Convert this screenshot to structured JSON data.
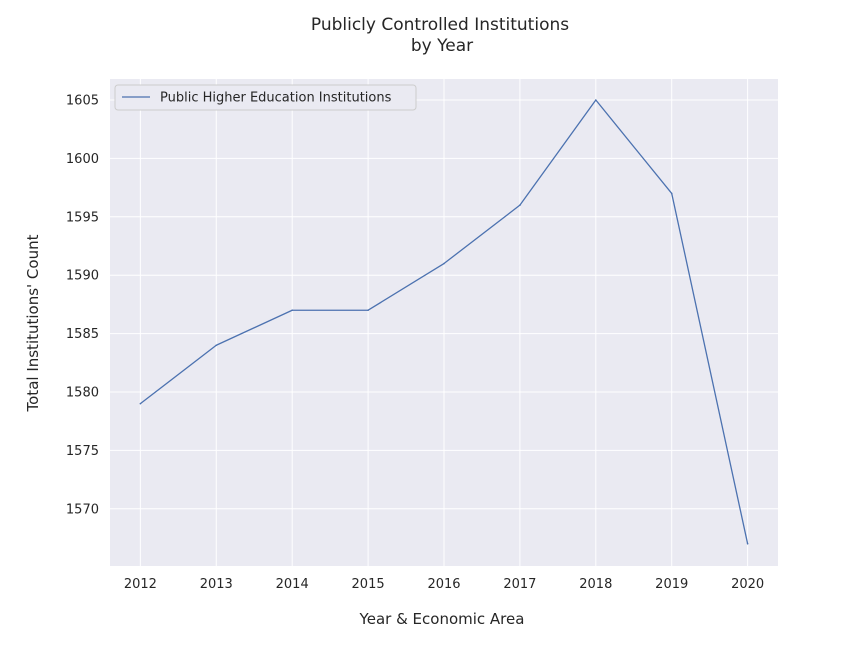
{
  "chart_data": {
    "type": "line",
    "title": [
      "Publicly Controlled Institutions",
      "by Year"
    ],
    "xlabel": "Year & Economic Area",
    "ylabel": "Total Institutions' Count",
    "x": [
      2012,
      2013,
      2014,
      2015,
      2016,
      2017,
      2018,
      2019,
      2020
    ],
    "xticks": [
      "2012",
      "2013",
      "2014",
      "2015",
      "2016",
      "2017",
      "2018",
      "2019",
      "2020"
    ],
    "yticks": [
      1570,
      1575,
      1580,
      1585,
      1590,
      1595,
      1600,
      1605
    ],
    "xlim": [
      2011.6,
      2020.4
    ],
    "ylim": [
      1565.1,
      1606.8
    ],
    "grid": true,
    "legend_position": "top-left",
    "series": [
      {
        "name": "Public Higher Education Institutions",
        "color": "#4c72b0",
        "values": [
          1579,
          1584,
          1587,
          1587,
          1591,
          1596,
          1605,
          1597,
          1567
        ]
      }
    ],
    "colors": {
      "plot_background": "#eaeaf2",
      "grid": "#ffffff",
      "text": "#262626"
    }
  }
}
